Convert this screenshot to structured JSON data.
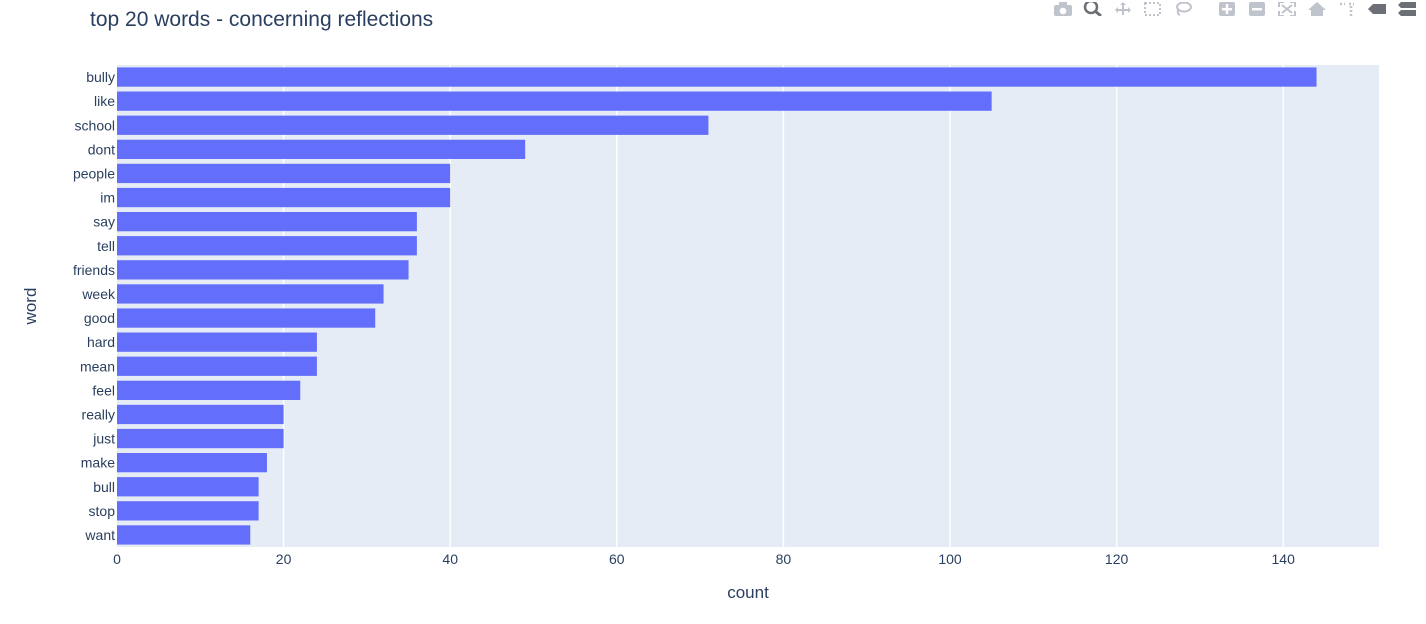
{
  "chart_data": {
    "type": "bar",
    "orientation": "horizontal",
    "title": "top 20 words - concerning reflections",
    "xlabel": "count",
    "ylabel": "word",
    "xlim": [
      0,
      151.5
    ],
    "xticks": [
      0,
      20,
      40,
      60,
      80,
      100,
      120,
      140
    ],
    "grid": true,
    "bar_color": "#636efa",
    "plot_bg": "#e5ecf6",
    "categories": [
      "bully",
      "like",
      "school",
      "dont",
      "people",
      "im",
      "say",
      "tell",
      "friends",
      "week",
      "good",
      "hard",
      "mean",
      "feel",
      "really",
      "just",
      "make",
      "bull",
      "stop",
      "want"
    ],
    "values": [
      144,
      105,
      71,
      49,
      40,
      40,
      36,
      36,
      35,
      32,
      31,
      24,
      24,
      22,
      20,
      20,
      18,
      17,
      17,
      16
    ]
  },
  "modebar": {
    "buttons": [
      "camera-icon",
      "zoom-icon",
      "pan-icon",
      "box-select-icon",
      "lasso-icon",
      "zoom-in-icon",
      "zoom-out-icon",
      "autoscale-icon",
      "home-icon",
      "spike-lines-icon",
      "hover-closest-icon",
      "hover-compare-icon"
    ]
  }
}
